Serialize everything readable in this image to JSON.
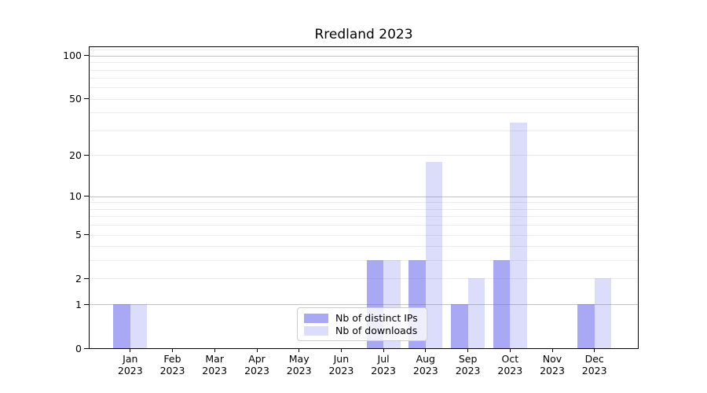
{
  "chart_data": {
    "type": "bar",
    "title": "Rredland 2023",
    "categories": [
      "Jan 2023",
      "Feb 2023",
      "Mar 2023",
      "Apr 2023",
      "May 2023",
      "Jun 2023",
      "Jul 2023",
      "Aug 2023",
      "Sep 2023",
      "Oct 2023",
      "Nov 2023",
      "Dec 2023"
    ],
    "series": [
      {
        "name": "Nb of distinct IPs",
        "color": "rgba(102,102,238,0.57)",
        "values": [
          1,
          0,
          0,
          0,
          0,
          0,
          3,
          3,
          1,
          3,
          0,
          1
        ]
      },
      {
        "name": "Nb of downloads",
        "color": "rgba(102,102,238,0.23)",
        "values": [
          1,
          0,
          0,
          0,
          0,
          0,
          3,
          18,
          2,
          34,
          0,
          2
        ]
      }
    ],
    "xlabel": "",
    "ylabel": "",
    "yscale": "log1p",
    "ylim": [
      0,
      114.3
    ],
    "ytick_values": [
      0,
      1,
      2,
      5,
      10,
      20,
      50,
      100
    ],
    "ytick_labels": [
      "0",
      "1",
      "2",
      "5",
      "10",
      "20",
      "50",
      "100"
    ],
    "major_gridlines": [
      1,
      10,
      100
    ],
    "minor_gridlines": [
      2,
      3,
      4,
      5,
      6,
      7,
      8,
      9,
      20,
      30,
      40,
      50,
      60,
      70,
      80,
      90,
      110
    ],
    "grid": true,
    "legend_position": "lower center"
  },
  "legend": {
    "items": [
      {
        "label": "Nb of distinct IPs"
      },
      {
        "label": "Nb of downloads"
      }
    ]
  },
  "colors": {
    "ips_bar": "rgba(102,102,238,0.57)",
    "downloads_bar": "rgba(102,102,238,0.23)",
    "major_grid": "#c2c2c2",
    "minor_grid": "#ebebeb",
    "axis": "#000000",
    "legend_border": "#cccccc"
  }
}
